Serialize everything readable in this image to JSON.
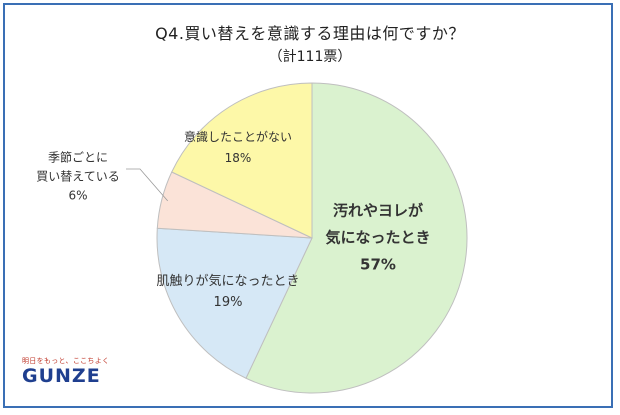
{
  "title": "Q4.買い替えを意識する理由は何ですか？",
  "subtitle": "（計111票）",
  "logo": {
    "tagline": "明日をもっと、ここちよく",
    "wordmark": "GUNZE"
  },
  "chart_data": {
    "type": "pie",
    "total_votes": 111,
    "slices": [
      {
        "label": [
          "汚れやヨレが",
          "気になったとき"
        ],
        "value": 57,
        "value_label": "57%",
        "color": "#daf2cf",
        "bold": true
      },
      {
        "label": [
          "肌触りが気になったとき"
        ],
        "value": 19,
        "value_label": "19%",
        "color": "#d6e8f6",
        "bold": false
      },
      {
        "label": [
          "季節ごとに",
          "買い替えている"
        ],
        "value": 6,
        "value_label": "6%",
        "color": "#fbe3d8",
        "bold": false
      },
      {
        "label": [
          "意識したことがない"
        ],
        "value": 18,
        "value_label": "18%",
        "color": "#fdf8a8",
        "bold": false
      }
    ],
    "stroke": "#bfbfbf"
  }
}
